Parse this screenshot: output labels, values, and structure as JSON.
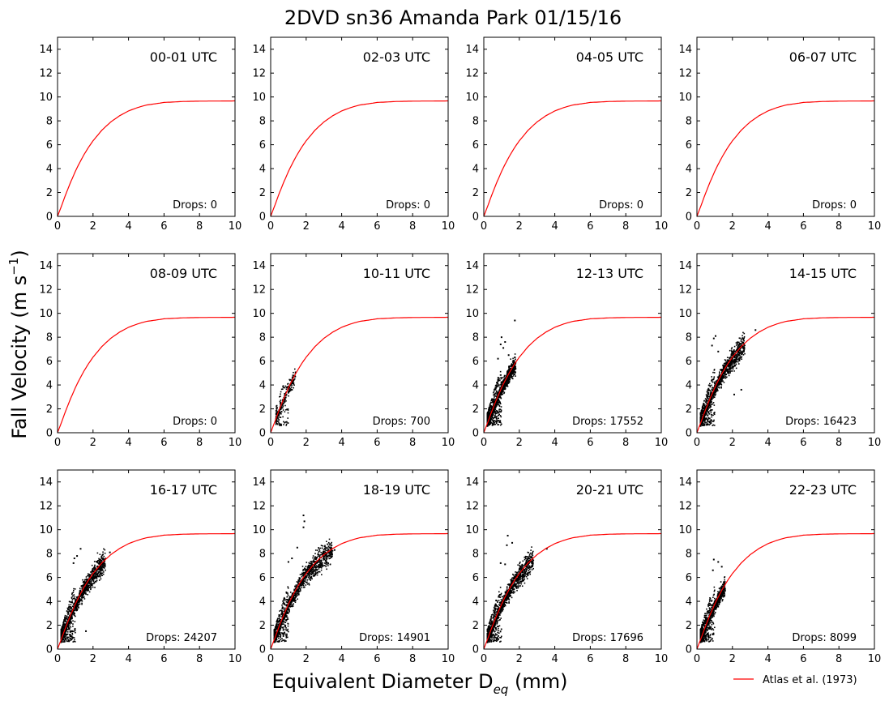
{
  "chart_data": {
    "type": "scatter",
    "title": "2DVD sn36 Amanda Park 01/15/16",
    "ylabel": "Fall Velocity (m s",
    "ylabel_sup": "−1",
    "ylabel_close": ")",
    "xlabel": "Equivalent Diameter D",
    "xlabel_sub": "eq",
    "xlabel_close": " (mm)",
    "xlim": [
      0,
      10
    ],
    "ylim": [
      0,
      15
    ],
    "x_ticks": [
      "0",
      "2",
      "4",
      "6",
      "8",
      "10"
    ],
    "y_ticks": [
      "0",
      "2",
      "4",
      "6",
      "8",
      "10",
      "12",
      "14"
    ],
    "grid": false,
    "legend": {
      "position": "bottom-right",
      "entries": [
        {
          "name": "Atlas et al. (1973)",
          "color": "#ff0000"
        }
      ]
    },
    "reference_curve": {
      "name": "Atlas et al. (1973)",
      "color": "#ff0000",
      "points": [
        [
          0.0,
          0.0
        ],
        [
          0.25,
          0.98
        ],
        [
          0.5,
          1.99
        ],
        [
          0.75,
          2.91
        ],
        [
          1.0,
          3.76
        ],
        [
          1.25,
          4.51
        ],
        [
          1.5,
          5.19
        ],
        [
          1.75,
          5.79
        ],
        [
          2.0,
          6.33
        ],
        [
          2.5,
          7.22
        ],
        [
          3.0,
          7.91
        ],
        [
          3.5,
          8.43
        ],
        [
          4.0,
          8.83
        ],
        [
          4.5,
          9.11
        ],
        [
          5.0,
          9.32
        ],
        [
          6.0,
          9.54
        ],
        [
          7.0,
          9.62
        ],
        [
          8.0,
          9.65
        ],
        [
          9.0,
          9.66
        ],
        [
          10.0,
          9.67
        ]
      ]
    },
    "panels": [
      {
        "label": "00-01 UTC",
        "drops_label": "Drops: 0",
        "drops": 0
      },
      {
        "label": "02-03 UTC",
        "drops_label": "Drops: 0",
        "drops": 0
      },
      {
        "label": "04-05 UTC",
        "drops_label": "Drops: 0",
        "drops": 0
      },
      {
        "label": "06-07 UTC",
        "drops_label": "Drops: 0",
        "drops": 0
      },
      {
        "label": "08-09 UTC",
        "drops_label": "Drops: 0",
        "drops": 0
      },
      {
        "label": "10-11 UTC",
        "drops_label": "Drops: 700",
        "drops": 700,
        "d_range": [
          0.3,
          1.4
        ],
        "outliers": [
          [
            0.55,
            0.7
          ],
          [
            0.9,
            0.9
          ],
          [
            1.2,
            3.6
          ]
        ]
      },
      {
        "label": "12-13 UTC",
        "drops_label": "Drops: 17552",
        "drops": 17552,
        "d_range": [
          0.2,
          1.8
        ],
        "outliers": [
          [
            1.75,
            9.4
          ],
          [
            1.2,
            7.6
          ],
          [
            1.0,
            8.0
          ],
          [
            1.4,
            6.5
          ],
          [
            0.8,
            6.2
          ],
          [
            1.1,
            7.1
          ],
          [
            0.95,
            7.4
          ]
        ]
      },
      {
        "label": "14-15 UTC",
        "drops_label": "Drops: 16423",
        "drops": 16423,
        "d_range": [
          0.2,
          2.7
        ],
        "outliers": [
          [
            3.3,
            8.6
          ],
          [
            1.05,
            8.1
          ],
          [
            0.85,
            7.3
          ],
          [
            1.2,
            6.8
          ],
          [
            0.95,
            7.9
          ],
          [
            2.5,
            3.6
          ],
          [
            2.1,
            3.2
          ]
        ]
      },
      {
        "label": "16-17 UTC",
        "drops_label": "Drops: 24207",
        "drops": 24207,
        "d_range": [
          0.2,
          2.7
        ],
        "outliers": [
          [
            2.95,
            8.1
          ],
          [
            1.3,
            8.4
          ],
          [
            1.1,
            7.8
          ],
          [
            0.95,
            7.6
          ],
          [
            1.6,
            1.5
          ],
          [
            0.9,
            7.2
          ]
        ]
      },
      {
        "label": "18-19 UTC",
        "drops_label": "Drops: 14901",
        "drops": 14901,
        "d_range": [
          0.2,
          3.5
        ],
        "outliers": [
          [
            1.85,
            11.2
          ],
          [
            1.9,
            10.7
          ],
          [
            1.85,
            10.2
          ],
          [
            1.5,
            8.5
          ],
          [
            1.2,
            7.6
          ],
          [
            3.6,
            8.3
          ],
          [
            1.0,
            7.3
          ]
        ]
      },
      {
        "label": "20-21 UTC",
        "drops_label": "Drops: 17696",
        "drops": 17696,
        "d_range": [
          0.2,
          2.8
        ],
        "outliers": [
          [
            1.35,
            9.5
          ],
          [
            1.3,
            8.7
          ],
          [
            3.55,
            8.4
          ],
          [
            1.6,
            8.9
          ],
          [
            0.95,
            7.2
          ],
          [
            1.2,
            7.1
          ]
        ]
      },
      {
        "label": "22-23 UTC",
        "drops_label": "Drops: 8099",
        "drops": 8099,
        "d_range": [
          0.2,
          1.6
        ],
        "outliers": [
          [
            1.2,
            7.3
          ],
          [
            0.95,
            7.5
          ],
          [
            1.4,
            6.9
          ],
          [
            0.9,
            6.6
          ]
        ]
      }
    ]
  }
}
